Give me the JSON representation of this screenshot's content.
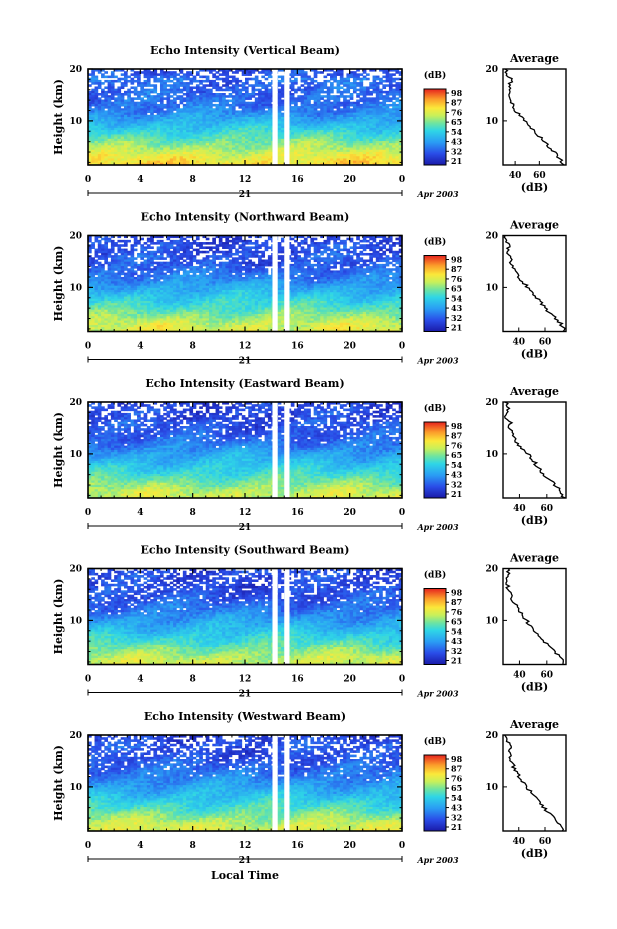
{
  "figure": {
    "xlabel_bottom": "Local Time",
    "date_label": "Apr 2003",
    "day_label": "21"
  },
  "chart_data": [
    {
      "type": "heatmap",
      "title": "Echo Intensity (Vertical Beam)",
      "ylabel": "Height (km)",
      "x_ticks": [
        "0",
        "4",
        "8",
        "12",
        "16",
        "20",
        "0"
      ],
      "xlim_hours": [
        0,
        24
      ],
      "y_ticks": [
        "20",
        "10"
      ],
      "ylim_km": [
        1.5,
        20
      ],
      "colorbar": {
        "unit": "(dB)",
        "ticks": [
          "98",
          "87",
          "76",
          "65",
          "54",
          "43",
          "32",
          "21"
        ],
        "range": [
          21,
          98
        ]
      },
      "data_gaps_hours": [
        [
          14.1,
          14.5
        ],
        [
          15.0,
          15.4
        ]
      ],
      "profile": {
        "title": "Average",
        "xlabel": "(dB)",
        "x_ticks": [
          "40",
          "60"
        ],
        "xlim": [
          30,
          82
        ],
        "y_ticks": [
          "20",
          "10"
        ],
        "heights_km": [
          1.5,
          2,
          3,
          4,
          5,
          6,
          7,
          8,
          9,
          10,
          11,
          12,
          13,
          14,
          15,
          16,
          17,
          18,
          19,
          20
        ],
        "values_db": [
          80,
          79,
          76,
          72,
          68,
          64,
          60,
          56,
          52,
          48,
          44,
          40,
          38,
          37,
          36,
          36,
          35,
          38,
          33,
          32
        ]
      }
    },
    {
      "type": "heatmap",
      "title": "Echo Intensity (Northward Beam)",
      "ylabel": "Height (km)",
      "x_ticks": [
        "0",
        "4",
        "8",
        "12",
        "16",
        "20",
        "0"
      ],
      "xlim_hours": [
        0,
        24
      ],
      "y_ticks": [
        "20",
        "10"
      ],
      "ylim_km": [
        1.5,
        20
      ],
      "colorbar": {
        "unit": "(dB)",
        "ticks": [
          "98",
          "87",
          "76",
          "65",
          "54",
          "43",
          "32",
          "21"
        ],
        "range": [
          21,
          98
        ]
      },
      "data_gaps_hours": [
        [
          14.1,
          14.5
        ],
        [
          15.0,
          15.4
        ]
      ],
      "profile": {
        "title": "Average",
        "xlabel": "(dB)",
        "x_ticks": [
          "40",
          "60"
        ],
        "xlim": [
          28,
          76
        ],
        "y_ticks": [
          "20",
          "10"
        ],
        "heights_km": [
          1.5,
          2,
          3,
          4,
          5,
          6,
          7,
          8,
          9,
          10,
          11,
          12,
          13,
          14,
          15,
          16,
          17,
          18,
          19,
          20
        ],
        "values_db": [
          74,
          74,
          72,
          68,
          64,
          60,
          57,
          54,
          50,
          47,
          43,
          40,
          37,
          35,
          33,
          34,
          31,
          33,
          31,
          30
        ]
      }
    },
    {
      "type": "heatmap",
      "title": "Echo Intensity (Eastward Beam)",
      "ylabel": "Height (km)",
      "x_ticks": [
        "0",
        "4",
        "8",
        "12",
        "16",
        "20",
        "0"
      ],
      "xlim_hours": [
        0,
        24
      ],
      "y_ticks": [
        "20",
        "10"
      ],
      "ylim_km": [
        1.5,
        20
      ],
      "colorbar": {
        "unit": "(dB)",
        "ticks": [
          "98",
          "87",
          "76",
          "65",
          "54",
          "43",
          "32",
          "21"
        ],
        "range": [
          21,
          98
        ]
      },
      "data_gaps_hours": [
        [
          14.1,
          14.5
        ],
        [
          15.0,
          15.4
        ]
      ],
      "profile": {
        "title": "Average",
        "xlabel": "(dB)",
        "x_ticks": [
          "40",
          "60"
        ],
        "xlim": [
          28,
          74
        ],
        "y_ticks": [
          "20",
          "10"
        ],
        "heights_km": [
          1.5,
          2,
          3,
          4,
          5,
          6,
          7,
          8,
          9,
          10,
          11,
          12,
          13,
          14,
          15,
          16,
          17,
          18,
          19,
          20
        ],
        "values_db": [
          72,
          72,
          70,
          66,
          62,
          58,
          55,
          52,
          49,
          46,
          42,
          39,
          36,
          34,
          33,
          34,
          30,
          32,
          31,
          30
        ]
      }
    },
    {
      "type": "heatmap",
      "title": "Echo Intensity (Southward Beam)",
      "ylabel": "Height (km)",
      "x_ticks": [
        "0",
        "4",
        "8",
        "12",
        "16",
        "20",
        "0"
      ],
      "xlim_hours": [
        0,
        24
      ],
      "y_ticks": [
        "20",
        "10"
      ],
      "ylim_km": [
        1.5,
        20
      ],
      "colorbar": {
        "unit": "(dB)",
        "ticks": [
          "98",
          "87",
          "76",
          "65",
          "54",
          "43",
          "32",
          "21"
        ],
        "range": [
          21,
          98
        ]
      },
      "data_gaps_hours": [
        [
          14.1,
          14.5
        ],
        [
          15.0,
          15.4
        ]
      ],
      "profile": {
        "title": "Average",
        "xlabel": "(dB)",
        "x_ticks": [
          "40",
          "60"
        ],
        "xlim": [
          28,
          74
        ],
        "y_ticks": [
          "20",
          "10"
        ],
        "heights_km": [
          1.5,
          2,
          3,
          4,
          5,
          6,
          7,
          8,
          9,
          10,
          11,
          12,
          13,
          14,
          15,
          16,
          17,
          18,
          19,
          20
        ],
        "values_db": [
          72,
          72,
          70,
          66,
          62,
          58,
          55,
          51,
          48,
          45,
          42,
          39,
          37,
          34,
          33,
          32,
          31,
          31,
          33,
          31
        ]
      }
    },
    {
      "type": "heatmap",
      "title": "Echo Intensity (Westward Beam)",
      "ylabel": "Height (km)",
      "x_ticks": [
        "0",
        "4",
        "8",
        "12",
        "16",
        "20",
        "0"
      ],
      "xlim_hours": [
        0,
        24
      ],
      "y_ticks": [
        "20",
        "10"
      ],
      "ylim_km": [
        1.5,
        20
      ],
      "colorbar": {
        "unit": "(dB)",
        "ticks": [
          "98",
          "87",
          "76",
          "65",
          "54",
          "43",
          "32",
          "21"
        ],
        "range": [
          21,
          98
        ]
      },
      "data_gaps_hours": [
        [
          14.1,
          14.5
        ],
        [
          15.0,
          15.4
        ]
      ],
      "profile": {
        "title": "Average",
        "xlabel": "(dB)",
        "x_ticks": [
          "40",
          "60"
        ],
        "xlim": [
          28,
          76
        ],
        "y_ticks": [
          "20",
          "10"
        ],
        "heights_km": [
          1.5,
          2,
          3,
          4,
          5,
          6,
          7,
          8,
          9,
          10,
          11,
          12,
          13,
          14,
          15,
          16,
          17,
          18,
          19,
          20
        ],
        "values_db": [
          73,
          73,
          71,
          67,
          63,
          59,
          56,
          52,
          49,
          46,
          43,
          40,
          38,
          36,
          34,
          33,
          32,
          34,
          31,
          30
        ]
      }
    }
  ]
}
